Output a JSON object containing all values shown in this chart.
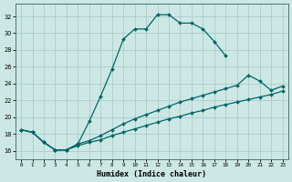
{
  "xlabel": "Humidex (Indice chaleur)",
  "bg_color": "#cde8e4",
  "grid_color": "#a8cccc",
  "line_color": "#006666",
  "xlim": [
    -0.5,
    23.5
  ],
  "ylim": [
    15.0,
    33.5
  ],
  "xticks": [
    0,
    1,
    2,
    3,
    4,
    5,
    6,
    7,
    8,
    9,
    10,
    11,
    12,
    13,
    14,
    15,
    16,
    17,
    18,
    19,
    20,
    21,
    22,
    23
  ],
  "yticks": [
    16,
    18,
    20,
    22,
    24,
    26,
    28,
    30,
    32
  ],
  "line1_x": [
    0,
    1,
    2,
    3,
    4,
    5,
    6,
    7,
    8,
    9,
    10,
    11,
    12,
    13,
    14,
    15,
    16,
    17,
    18
  ],
  "line1_y": [
    18.5,
    18.2,
    17.0,
    16.1,
    16.1,
    16.8,
    19.5,
    22.5,
    25.7,
    29.3,
    30.5,
    30.5,
    32.2,
    32.2,
    31.2,
    31.2,
    30.5,
    29.0,
    27.3
  ],
  "line2_x": [
    0,
    1,
    2,
    3,
    4,
    5,
    6,
    7,
    8,
    9,
    10,
    11,
    12,
    13,
    14,
    15,
    16,
    17,
    18,
    19,
    20,
    21,
    22,
    23
  ],
  "line2_y": [
    18.5,
    18.2,
    17.0,
    16.1,
    16.1,
    16.8,
    17.2,
    17.8,
    18.5,
    19.2,
    19.8,
    20.3,
    20.8,
    21.3,
    21.8,
    22.2,
    22.6,
    23.0,
    23.4,
    23.8,
    25.0,
    24.3,
    23.2,
    23.7
  ],
  "line3_x": [
    0,
    1,
    2,
    3,
    4,
    5,
    6,
    7,
    8,
    9,
    10,
    11,
    12,
    13,
    14,
    15,
    16,
    17,
    18,
    19,
    20,
    21,
    22,
    23
  ],
  "line3_y": [
    18.5,
    18.2,
    17.0,
    16.1,
    16.1,
    16.6,
    17.0,
    17.3,
    17.8,
    18.2,
    18.6,
    19.0,
    19.4,
    19.8,
    20.1,
    20.5,
    20.8,
    21.2,
    21.5,
    21.8,
    22.1,
    22.4,
    22.7,
    23.1
  ]
}
